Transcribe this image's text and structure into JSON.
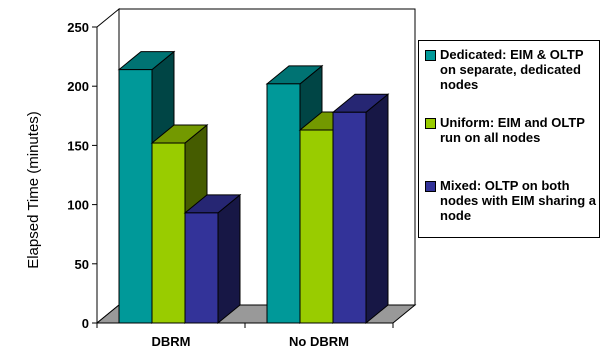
{
  "chart_data": {
    "type": "bar",
    "style": "3d-clustered-column",
    "categories": [
      "DBRM",
      "No DBRM"
    ],
    "series": [
      {
        "name": "Dedicated: EIM & OLTP on separate, dedicated nodes",
        "color": "#009999",
        "values": [
          214,
          202
        ]
      },
      {
        "name": "Uniform: EIM and OLTP run on all nodes",
        "color": "#99CC00",
        "values": [
          152,
          163
        ]
      },
      {
        "name": "Mixed: OLTP on both nodes with EIM sharing a node",
        "color": "#333399",
        "values": [
          93,
          178
        ]
      }
    ],
    "title": "",
    "xlabel": "",
    "ylabel": "Elapsed Time (minutes)",
    "ylim": [
      0,
      250
    ],
    "yticks": [
      0,
      50,
      100,
      150,
      200,
      250
    ],
    "grid": false,
    "legend_position": "right"
  }
}
